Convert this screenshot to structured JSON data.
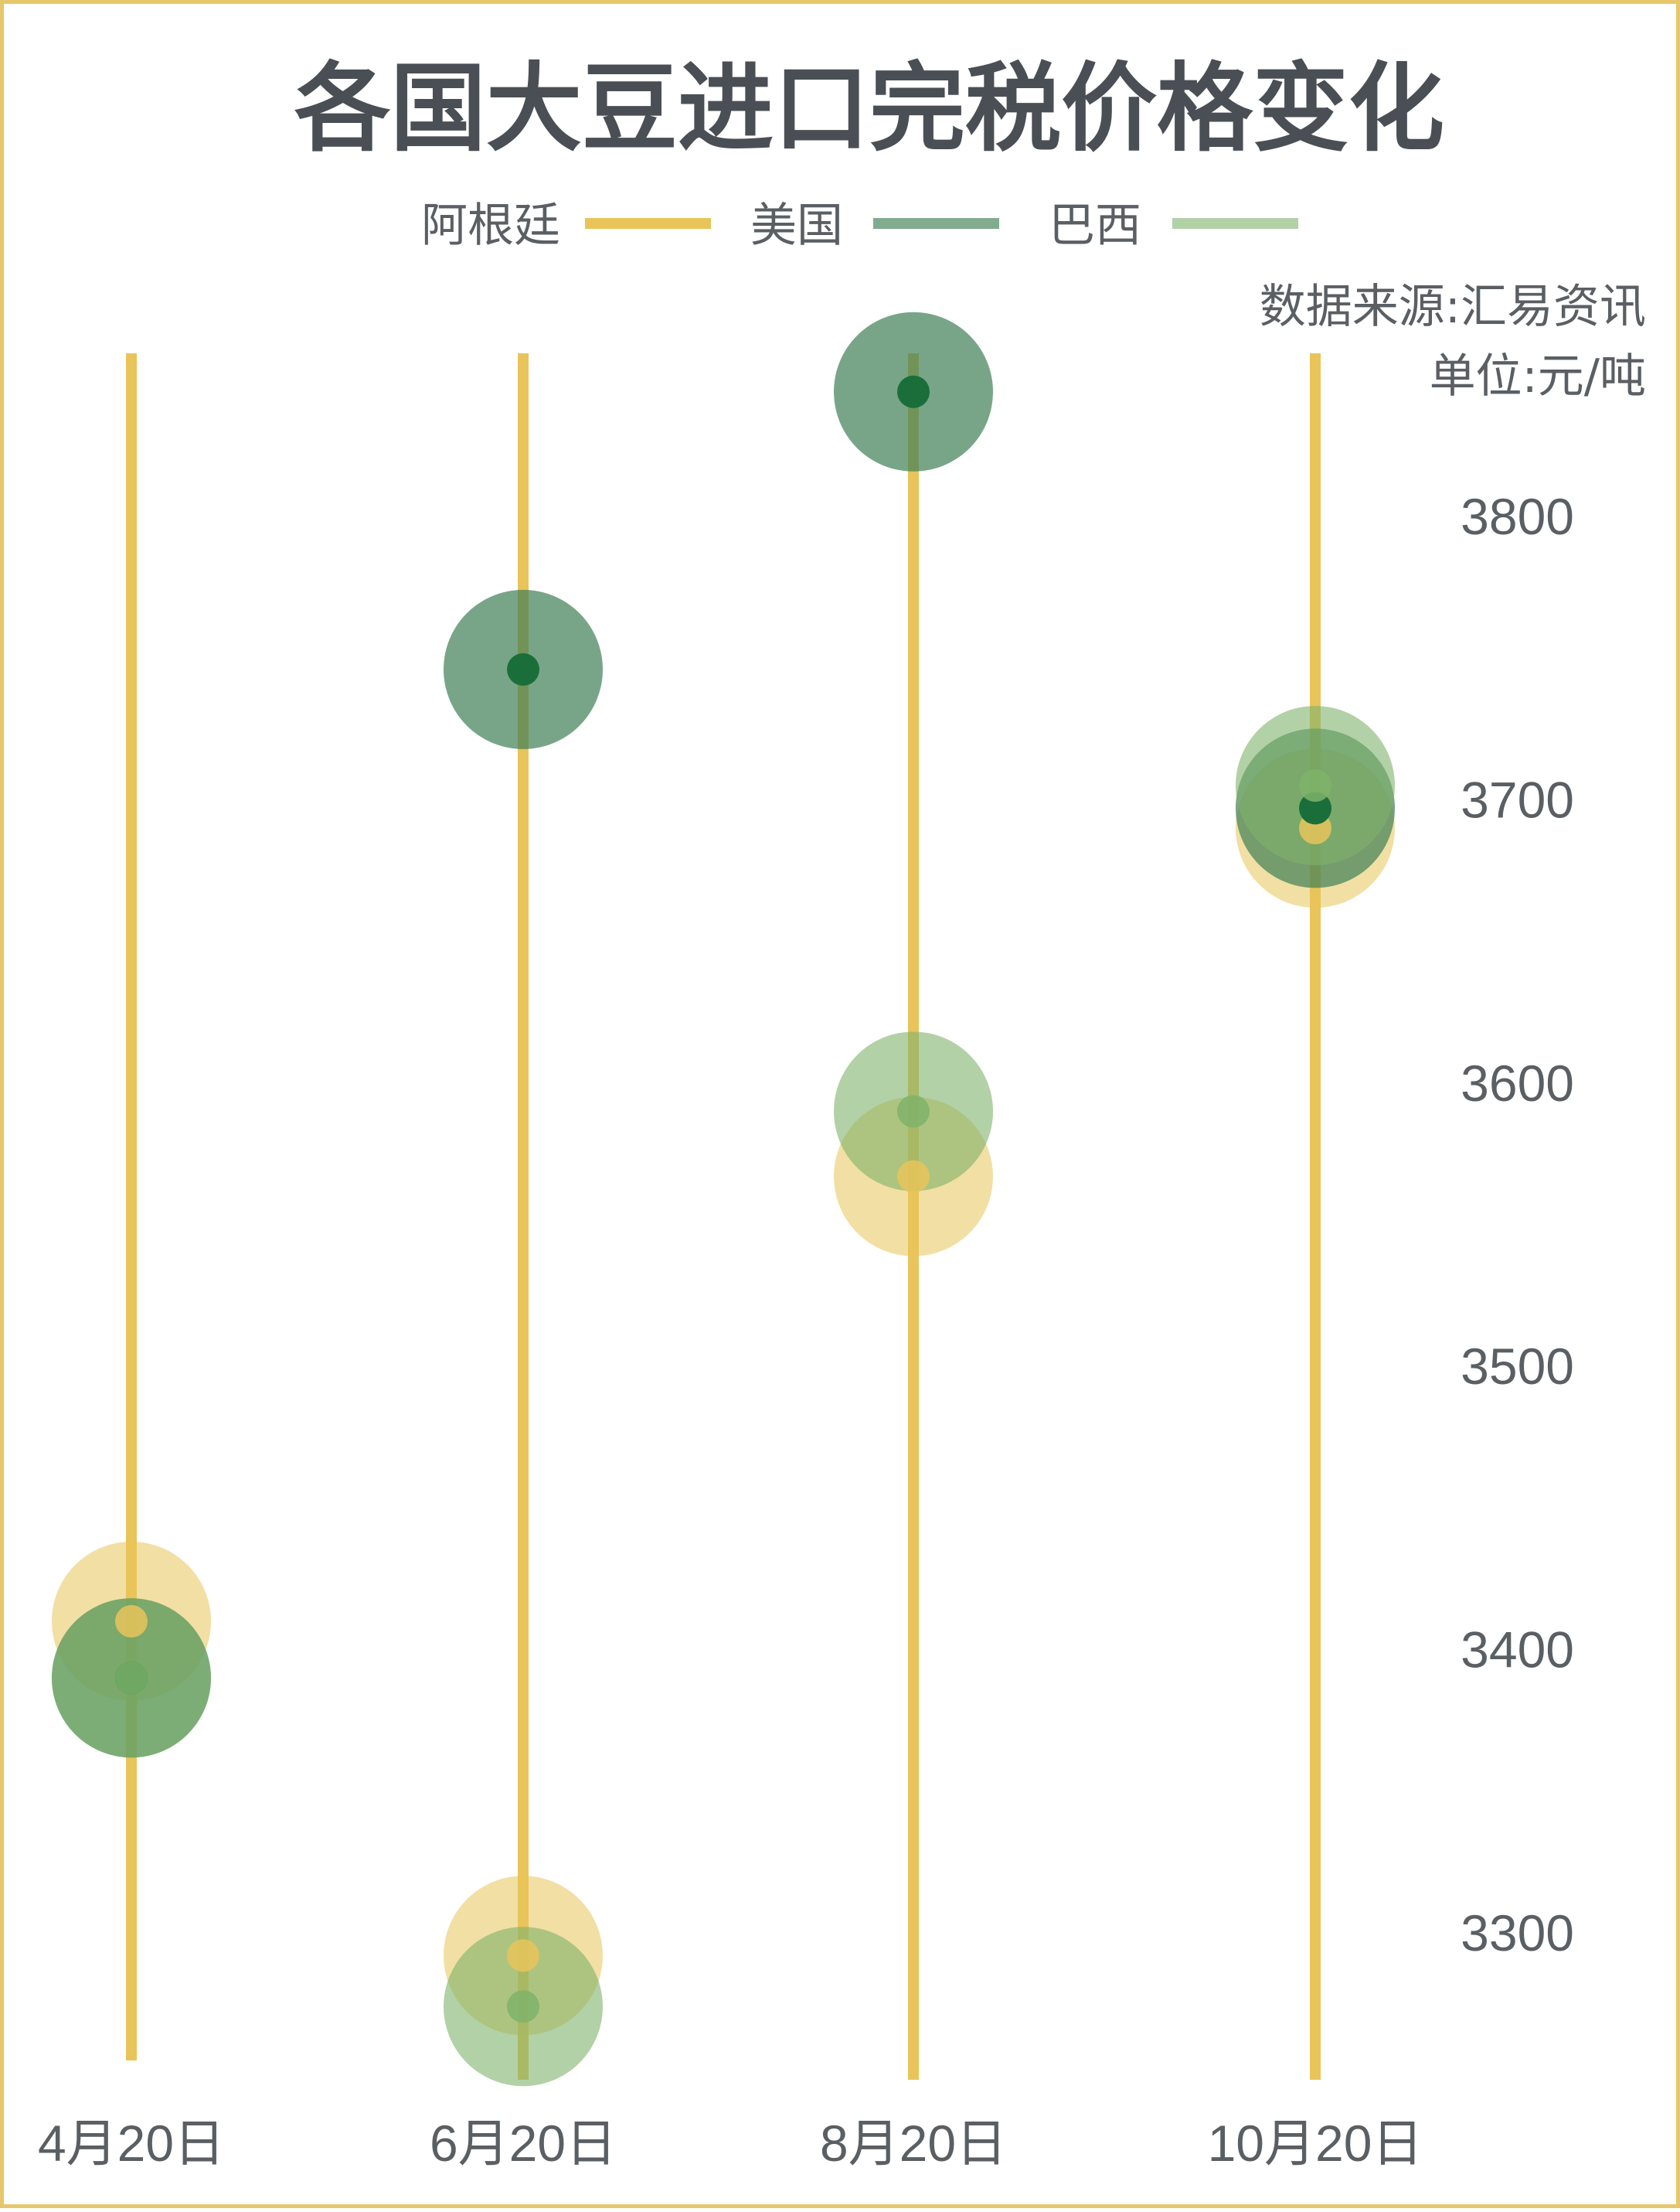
{
  "chart_data": {
    "type": "scatter",
    "title": "各国大豆进口完税价格变化",
    "source": "数据来源:汇易资讯",
    "unit": "单位:元/吨",
    "categories": [
      "4月20日",
      "6月20日",
      "8月20日",
      "10月20日"
    ],
    "y_ticks": [
      3300,
      3400,
      3500,
      3600,
      3700,
      3800
    ],
    "ylim": [
      3250,
      3860
    ],
    "legend_position": "top-center",
    "series": [
      {
        "name": "阿根廷",
        "color": "#e8c45a",
        "values": [
          3410,
          3292,
          3567,
          3690
        ]
      },
      {
        "name": "美国",
        "color": "#3e7f55",
        "values": [
          3390,
          3746,
          3844,
          3697
        ]
      },
      {
        "name": "巴西",
        "color": "#7fb36a",
        "values": [
          3390,
          3274,
          3590,
          3705
        ]
      }
    ],
    "colors": {
      "stem": "#e8c45a",
      "dot_center": "#1a6e3a",
      "border": "#e6c76b"
    }
  }
}
